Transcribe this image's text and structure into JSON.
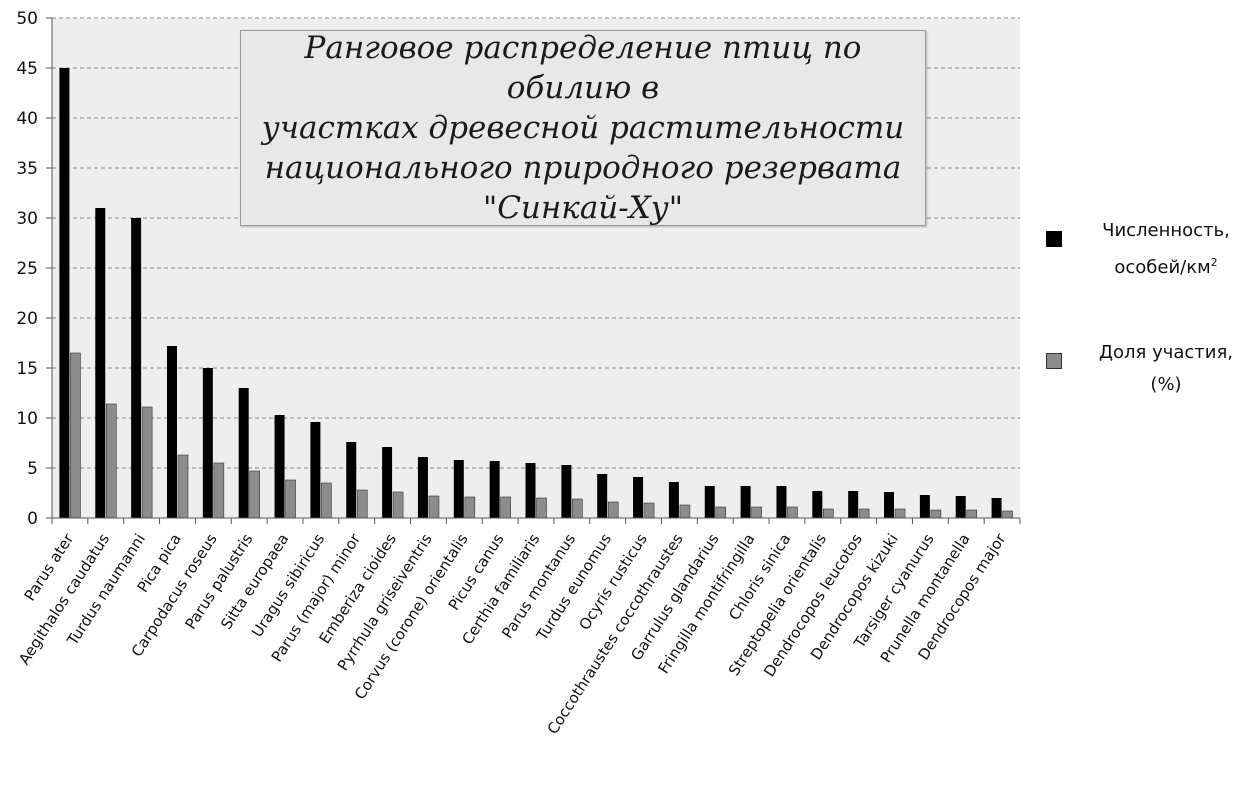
{
  "chart_data": {
    "type": "bar",
    "title": "Ранговое распределение птиц по обилию в участках древесной растительности национального природного резервата \"Синкай-Ху\"",
    "ylim": [
      0,
      50
    ],
    "yticks": [
      0,
      5,
      10,
      15,
      20,
      25,
      30,
      35,
      40,
      45,
      50
    ],
    "grid": true,
    "legend_position": "right",
    "categories": [
      "Parus ater",
      "Aegithalos caudatus",
      "Turdus naumanni",
      "Pica pica",
      "Carpodacus roseus",
      "Parus palustris",
      "Sitta europaea",
      "Uragus sibiricus",
      "Parus (major) minor",
      "Emberiza cioides",
      "Pyrrhula griseiventris",
      "Corvus (corone) orientalis",
      "Picus canus",
      "Certhia familiaris",
      "Parus montanus",
      "Turdus eunomus",
      "Ocyris rusticus",
      "Coccothraustes coccothraustes",
      "Garrulus glandarius",
      "Fringilla montifringilla",
      "Chloris sinica",
      "Streptopelia orientalis",
      "Dendrocopos leucotos",
      "Dendrocopos kizuki",
      "Tarsiger cyanurus",
      "Prunella montanella",
      "Dendrocopos major"
    ],
    "series": [
      {
        "name": "Численность, особей/км2",
        "color": "#000000",
        "values": [
          45,
          31,
          30,
          17.2,
          15,
          13,
          10.3,
          9.6,
          7.6,
          7.1,
          6.1,
          5.8,
          5.7,
          5.5,
          5.3,
          4.4,
          4.1,
          3.6,
          3.2,
          3.2,
          3.2,
          2.7,
          2.7,
          2.6,
          2.3,
          2.2,
          2.0
        ]
      },
      {
        "name": "Доля участия, (%)",
        "color": "#8c8c8c",
        "values": [
          16.5,
          11.4,
          11.1,
          6.3,
          5.5,
          4.7,
          3.8,
          3.5,
          2.8,
          2.6,
          2.2,
          2.1,
          2.1,
          2.0,
          1.9,
          1.6,
          1.5,
          1.3,
          1.1,
          1.1,
          1.1,
          0.9,
          0.9,
          0.9,
          0.8,
          0.8,
          0.7
        ]
      }
    ]
  },
  "title_box": {
    "text": "Ранговое распределение птиц по обилию в\nучастках древесной растительности\nнационального природного резервата\n\"Синкай-Ху\""
  },
  "legend": {
    "item1_label": "Численность,\nособей/км",
    "item1_sup": "2",
    "item2_label": "Доля участия,\n(%)"
  }
}
